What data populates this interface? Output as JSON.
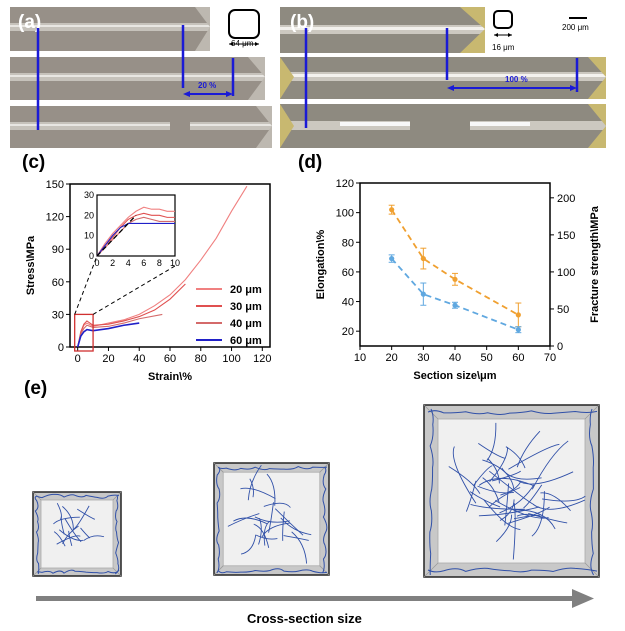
{
  "panels": {
    "a": {
      "letter": "(a)",
      "scale_label": "64 μm",
      "strain_label": "20 %"
    },
    "b": {
      "letter": "(b)",
      "scale_label": "16 μm",
      "scalebar_label": "200 μm",
      "strain_label": "100 %"
    },
    "c": {
      "letter": "(c)"
    },
    "d": {
      "letter": "(d)"
    },
    "e": {
      "letter": "(e)",
      "arrow_label": "Cross-section size"
    }
  },
  "colors": {
    "photo_bg": "#8f8980",
    "marker_blue": "#1a1ad6",
    "s20": "#f08080",
    "s30": "#e05050",
    "s40": "#d46a6a",
    "s60": "#2020c8",
    "elong": "#f0a030",
    "fracture": "#60a8e0",
    "cube_face": "#d8d8d8",
    "fiber": "#3050a8",
    "arrow": "#808080"
  },
  "chart_data": [
    {
      "id": "c",
      "type": "line",
      "title": "",
      "xlabel": "Strain\\%",
      "ylabel": "Stress\\MPa",
      "xlim": [
        -5,
        125
      ],
      "ylim": [
        0,
        150
      ],
      "xticks": [
        "0",
        "20",
        "40",
        "60",
        "80",
        "100",
        "120"
      ],
      "yticks": [
        "0",
        "30",
        "60",
        "90",
        "120",
        "150"
      ],
      "legend_position": "bottom-right",
      "series": [
        {
          "name": "20 μm",
          "x": [
            0,
            2,
            4,
            6,
            10,
            20,
            30,
            40,
            50,
            60,
            70,
            80,
            90,
            100,
            110
          ],
          "y": [
            0,
            12,
            20,
            22,
            19,
            22,
            25,
            30,
            38,
            48,
            62,
            80,
            100,
            125,
            148
          ]
        },
        {
          "name": "30 μm",
          "x": [
            0,
            2,
            4,
            6,
            10,
            20,
            30,
            40,
            50,
            60,
            70
          ],
          "y": [
            0,
            14,
            21,
            24,
            20,
            21,
            24,
            28,
            34,
            44,
            58
          ]
        },
        {
          "name": "40 μm",
          "x": [
            0,
            2,
            4,
            6,
            10,
            20,
            30,
            40,
            55
          ],
          "y": [
            0,
            12,
            17,
            20,
            18,
            19,
            22,
            26,
            30
          ]
        },
        {
          "name": "60 μm",
          "x": [
            0,
            2,
            4,
            6,
            10,
            20,
            30,
            40
          ],
          "y": [
            0,
            10,
            14,
            16,
            15,
            17,
            20,
            22
          ]
        }
      ],
      "inset": {
        "xlim": [
          0,
          10
        ],
        "ylim": [
          0,
          30
        ],
        "xticks": [
          "0",
          "2",
          "4",
          "6",
          "8",
          "10"
        ],
        "yticks": [
          "0",
          "10",
          "20",
          "30"
        ],
        "series": [
          {
            "name": "20 μm",
            "x": [
              0,
              1,
              2,
              3,
              4,
              5,
              6,
              7,
              8,
              9,
              10
            ],
            "y": [
              0,
              6,
              11,
              15,
              19,
              22,
              24,
              23,
              23,
              22,
              22
            ]
          },
          {
            "name": "30 μm",
            "x": [
              0,
              1,
              2,
              3,
              4,
              5,
              6,
              7,
              8,
              9,
              10
            ],
            "y": [
              0,
              5,
              9,
              14,
              18,
              20,
              21,
              20,
              20,
              19,
              19
            ]
          },
          {
            "name": "40 μm",
            "x": [
              0,
              1,
              2,
              3,
              4,
              5,
              6,
              7,
              8,
              9,
              10
            ],
            "y": [
              0,
              4,
              8,
              12,
              16,
              18,
              19,
              18,
              17,
              17,
              17
            ]
          },
          {
            "name": "60 μm",
            "x": [
              0,
              1,
              2,
              3,
              4,
              5,
              6,
              7,
              8,
              9,
              10
            ],
            "y": [
              0,
              5,
              10,
              14,
              16,
              16,
              16,
              16,
              16,
              16,
              16
            ]
          }
        ]
      }
    },
    {
      "id": "d",
      "type": "scatter",
      "title": "",
      "xlabel": "Section size\\μm",
      "ylabel": "Elongation\\%",
      "ylabel_right": "Fracture strength\\MPa",
      "xlim": [
        10,
        70
      ],
      "ylim": [
        10,
        120
      ],
      "ylim_right": [
        0,
        220
      ],
      "xticks": [
        "10",
        "20",
        "30",
        "40",
        "50",
        "60",
        "70"
      ],
      "yticks": [
        "20",
        "40",
        "60",
        "80",
        "100",
        "120"
      ],
      "yticks_right": [
        "0",
        "50",
        "100",
        "150",
        "200"
      ],
      "series": [
        {
          "name": "Elongation",
          "axis": "left",
          "x": [
            20,
            30,
            40,
            60
          ],
          "y": [
            102,
            69,
            55,
            31
          ],
          "err": [
            3,
            7,
            4,
            8
          ]
        },
        {
          "name": "Fracture strength",
          "axis": "right",
          "x": [
            20,
            30,
            40,
            60
          ],
          "y": [
            118,
            70,
            55,
            22
          ],
          "err": [
            5,
            15,
            4,
            4
          ]
        }
      ]
    }
  ]
}
